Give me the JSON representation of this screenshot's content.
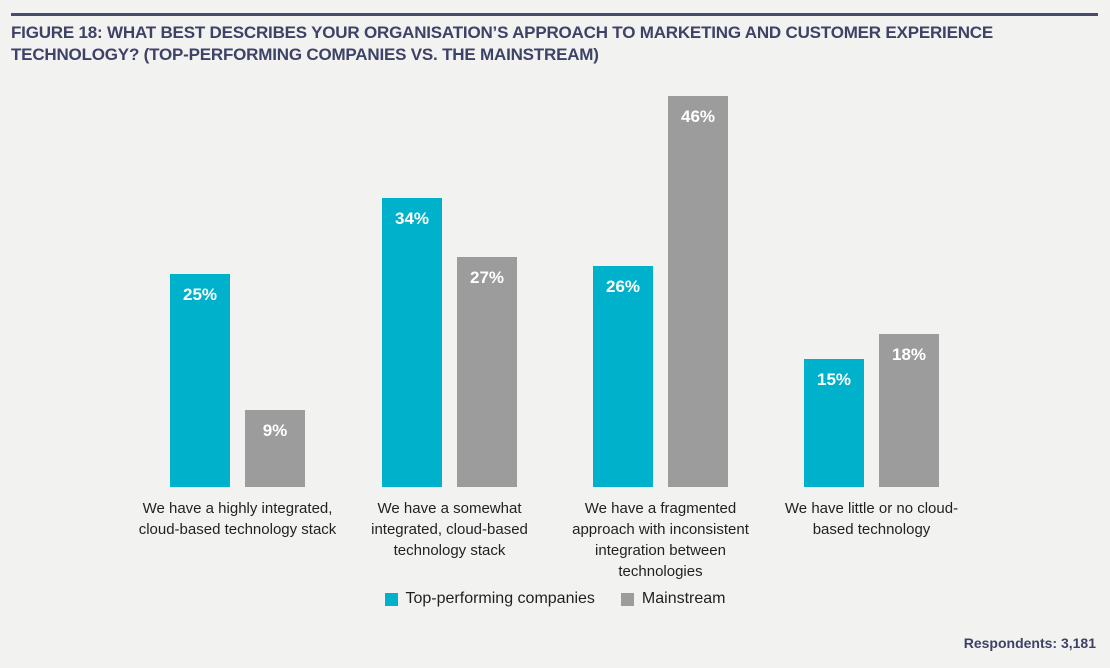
{
  "figure": {
    "title": "FIGURE 18: WHAT BEST DESCRIBES YOUR ORGANISATION’S APPROACH TO MARKETING AND CUSTOMER EXPERIENCE TECHNOLOGY? (TOP-PERFORMING COMPANIES VS. THE MAINSTREAM)",
    "respondents_note": "Respondents: 3,181"
  },
  "colors": {
    "top_performing_cyan": "#00b1cc",
    "mainstream_gray": "#9c9c9c",
    "heading_navy": "#3e4266",
    "rule_navy": "#474c6e",
    "background": "#f2f2f1",
    "text_dark": "#231f20",
    "bar_value_white": "#ffffff"
  },
  "chart_data": {
    "type": "bar",
    "title": "FIGURE 18: WHAT BEST DESCRIBES YOUR ORGANISATION’S APPROACH TO MARKETING AND CUSTOMER EXPERIENCE TECHNOLOGY? (TOP-PERFORMING COMPANIES VS. THE MAINSTREAM)",
    "categories": [
      "We have a highly integrated,\ncloud-based technology stack",
      "We have a somewhat\nintegrated, cloud-based\ntechnology stack",
      "We have a fragmented\napproach with inconsistent\nintegration between\ntechnologies",
      "We have little or no cloud-\nbased technology"
    ],
    "series": [
      {
        "key": "top-performing",
        "name": "Top-performing companies",
        "color_key": "top_performing_cyan",
        "values": [
          25,
          34,
          26,
          15
        ]
      },
      {
        "key": "mainstream",
        "name": "Mainstream",
        "color_key": "mainstream_gray",
        "values": [
          9,
          27,
          46,
          18
        ]
      }
    ],
    "value_suffix": "%",
    "unit": "percent of respondents",
    "ylim": [
      0,
      50
    ],
    "grid": false,
    "axis_lines": false,
    "legend_position": "bottom-center",
    "value_labels": "inside-top",
    "note": "Respondents: 3,181"
  }
}
